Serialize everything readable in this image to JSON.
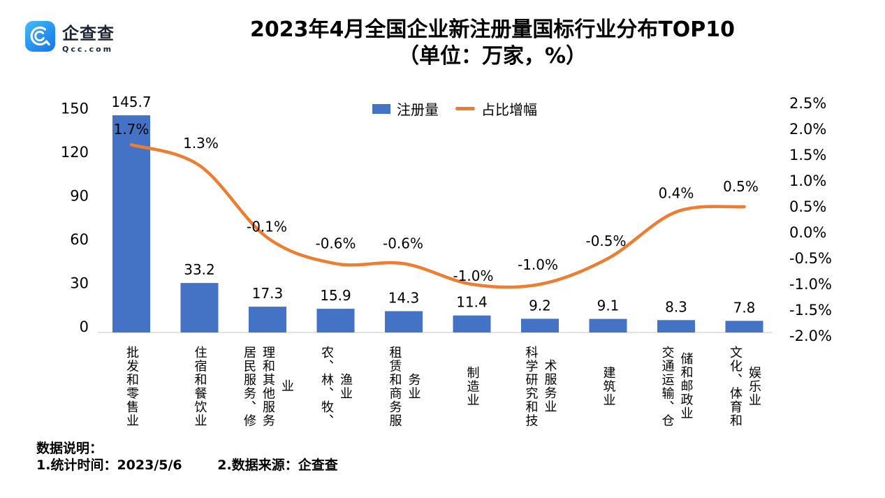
{
  "brand": {
    "name": "企查查",
    "domain": "Qcc.com",
    "logo_icon": "qcc-magnifier-icon",
    "logo_gradient_top": "#47bdf7",
    "logo_gradient_bottom": "#1474ea"
  },
  "title": {
    "line1": "2023年4月全国企业新注册量国标行业分布TOP10",
    "line2": "（单位：万家，%）"
  },
  "legend": {
    "items": [
      {
        "label": "注册量",
        "swatch": "bar",
        "color": "#4472C4"
      },
      {
        "label": "占比增幅",
        "swatch": "line",
        "color": "#ED7D31"
      }
    ]
  },
  "chart_data": {
    "type": "bar",
    "combo": "bar+line",
    "title": "2023年4月全国企业新注册量国标行业分布TOP10",
    "subtitle": "（单位：万家，%）",
    "categories": [
      "批发和零售业",
      "住宿和餐饮业",
      "居民服务、修理和其他服务业",
      "农、林、牧、渔业",
      "租赁和商务服务业",
      "制造业",
      "科学研究和技术服务业",
      "建筑业",
      "交通运输、仓储和邮政业",
      "文化、体育和娱乐业"
    ],
    "category_display_columns": [
      [
        "批发和零售业"
      ],
      [
        "住宿和餐饮业"
      ],
      [
        "居民服务、修",
        "理和其他服务",
        "业"
      ],
      [
        "农、林、牧、",
        "渔业"
      ],
      [
        "租赁和商务服",
        "务业"
      ],
      [
        "制造业"
      ],
      [
        "科学研究和技",
        "术服务业"
      ],
      [
        "建筑业"
      ],
      [
        "交通运输、仓",
        "储和邮政业"
      ],
      [
        "文化、体育和",
        "娱乐业"
      ]
    ],
    "series": [
      {
        "name": "注册量",
        "type": "bar",
        "axis": "left",
        "unit": "万家",
        "color": "#4472C4",
        "values": [
          145.7,
          33.2,
          17.3,
          15.9,
          14.3,
          11.4,
          9.2,
          9.1,
          8.3,
          7.8
        ],
        "labels": [
          "145.7",
          "33.2",
          "17.3",
          "15.9",
          "14.3",
          "11.4",
          "9.2",
          "9.1",
          "8.3",
          "7.8"
        ]
      },
      {
        "name": "占比增幅",
        "type": "line",
        "axis": "right",
        "unit": "%",
        "color": "#ED7D31",
        "values": [
          1.7,
          1.3,
          -0.1,
          -0.6,
          -0.6,
          -1.0,
          -1.0,
          -0.5,
          0.4,
          0.5
        ],
        "labels": [
          "1.7%",
          "1.3%",
          "-0.1%",
          "-0.6%",
          "-0.6%",
          "-1.0%",
          "-1.0%",
          "-0.5%",
          "0.4%",
          "0.5%"
        ]
      }
    ],
    "left_axis": {
      "ticks": [
        "0",
        "30",
        "60",
        "90",
        "120",
        "150"
      ],
      "tick_values": [
        0,
        30,
        60,
        90,
        120,
        150
      ],
      "range": [
        0,
        150
      ]
    },
    "right_axis": {
      "ticks": [
        "2.5%",
        "2.0%",
        "1.5%",
        "1.0%",
        "0.5%",
        "0.0%",
        "-0.5%",
        "-1.0%",
        "-1.5%",
        "-2.0%"
      ],
      "tick_values": [
        2.5,
        2.0,
        1.5,
        1.0,
        0.5,
        0.0,
        -0.5,
        -1.0,
        -1.5,
        -2.0
      ],
      "range": [
        -2.0,
        2.5
      ]
    },
    "grid": false,
    "legend_position": "top-center",
    "axis_line_color": "#d9d9d9"
  },
  "notes": {
    "heading": "数据说明：",
    "item1": "1.统计时间：2023/5/6",
    "item2": "2.数据来源：企查查"
  }
}
